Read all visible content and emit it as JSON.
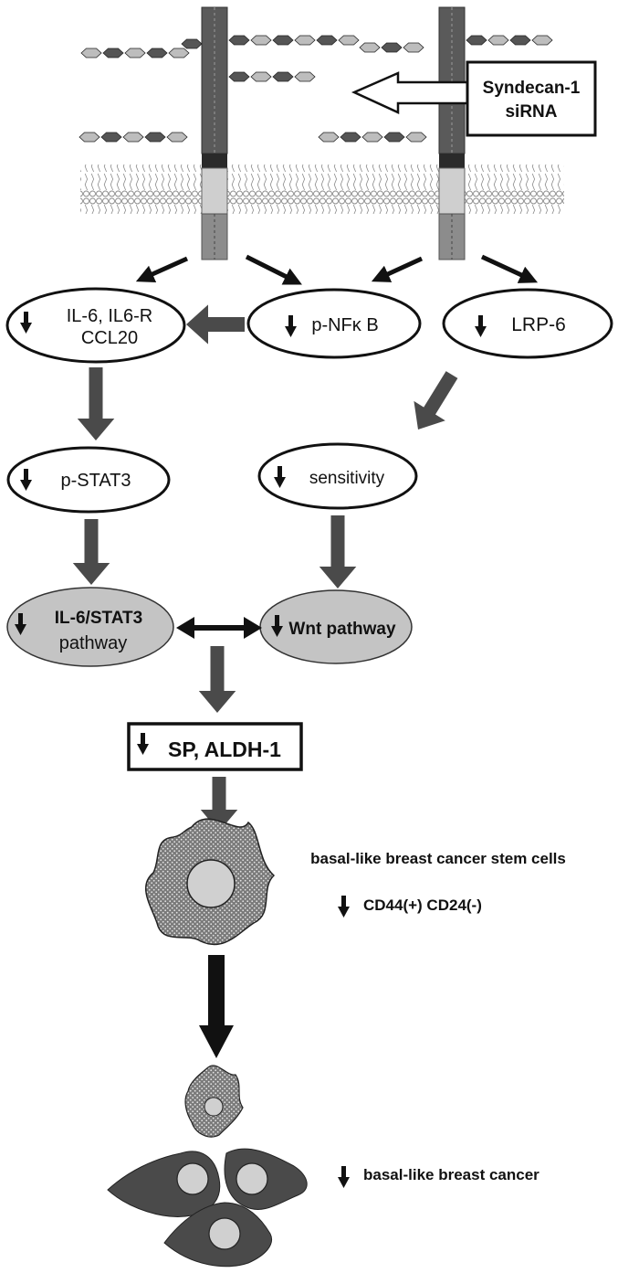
{
  "siRNA_box": {
    "line1": "Syndecan-1",
    "line2": "siRNA"
  },
  "nodes": {
    "il6": {
      "line1": "IL-6, IL6-R",
      "line2": "CCL20"
    },
    "pnfkb": {
      "label": "p-NFκ B"
    },
    "lrp6": {
      "label": "LRP-6"
    },
    "pstat3": {
      "label": "p-STAT3"
    },
    "sensitivity": {
      "label": "sensitivity"
    },
    "il6stat3": {
      "line1": "IL-6/STAT3",
      "line2": "pathway"
    },
    "wnt": {
      "label": "Wnt pathway"
    },
    "sp_aldh": {
      "label": "SP, ALDH-1"
    }
  },
  "cells": {
    "stem_title": "basal-like breast cancer stem cells",
    "stem_markers": "CD44(+) CD24(-)",
    "cancer_label": "basal-like breast cancer"
  },
  "colors": {
    "dark": "#4a4a4a",
    "medium": "#6e6e6e",
    "light_gray": "#c8c8c8",
    "pathway_fill": "#c4c4c4",
    "black": "#111111",
    "white": "#ffffff"
  }
}
